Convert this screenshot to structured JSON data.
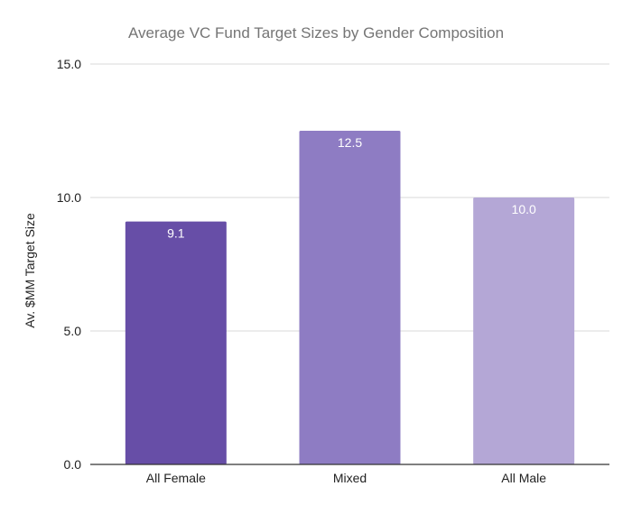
{
  "chart_data": {
    "type": "bar",
    "title": "Average VC Fund Target Sizes by Gender Composition",
    "xlabel": "",
    "ylabel": "Av. $MM Target Size",
    "categories": [
      "All Female",
      "Mixed",
      "All Male"
    ],
    "values": [
      9.1,
      12.5,
      10.0
    ],
    "value_labels": [
      "9.1",
      "12.5",
      "10.0"
    ],
    "y_ticks": [
      0,
      5,
      10,
      15
    ],
    "y_tick_labels": [
      "0.0",
      "5.0",
      "10.0",
      "15.0"
    ],
    "ylim": [
      0,
      15
    ],
    "grid": true,
    "legend": "none",
    "colors": [
      "#674ea7",
      "#8e7cc3",
      "#b4a7d6"
    ]
  }
}
